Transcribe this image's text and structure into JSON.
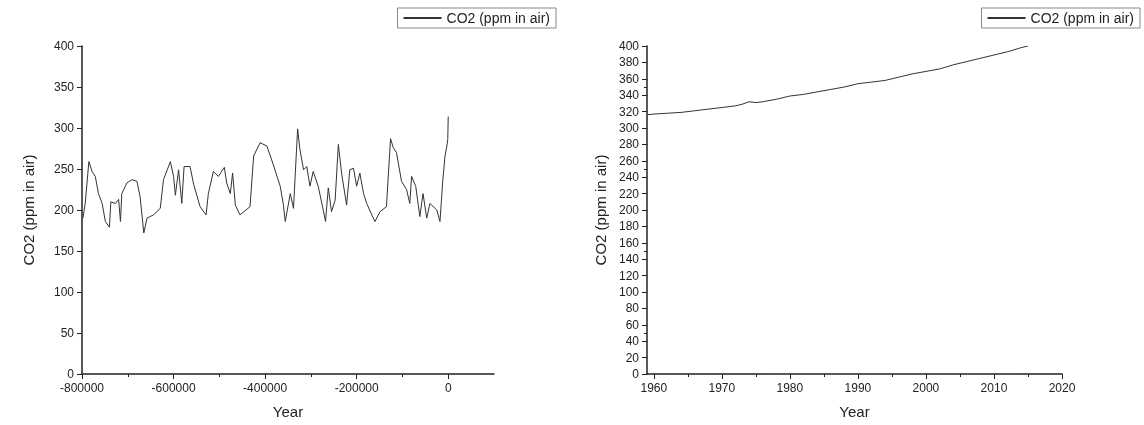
{
  "chart_data": [
    {
      "type": "line",
      "xlabel": "Year",
      "ylabel": "CO2 (ppm in air)",
      "legend": "top right",
      "grid": false,
      "marker": "none",
      "line_style": "solid",
      "xlim": [
        -800000,
        100000
      ],
      "xticks": [
        -800000,
        -600000,
        -400000,
        -200000,
        0
      ],
      "ylim": [
        0,
        400
      ],
      "yticks": [
        0,
        50,
        100,
        150,
        200,
        250,
        300,
        350,
        400
      ],
      "x": [
        -798000,
        -793000,
        -785000,
        -778000,
        -771000,
        -764000,
        -756000,
        -749000,
        -740000,
        -737000,
        -727000,
        -720000,
        -716000,
        -713000,
        -702000,
        -691000,
        -680000,
        -673000,
        -665000,
        -658000,
        -644000,
        -629000,
        -622000,
        -607000,
        -600000,
        -596000,
        -589000,
        -582000,
        -577000,
        -564000,
        -556000,
        -542000,
        -529000,
        -524000,
        -513000,
        -502000,
        -489000,
        -484000,
        -476000,
        -471000,
        -465000,
        -455000,
        -433000,
        -425000,
        -411000,
        -396000,
        -382000,
        -367000,
        -360000,
        -356000,
        -345000,
        -338000,
        -329000,
        -324000,
        -316000,
        -309000,
        -302000,
        -295000,
        -284000,
        -273000,
        -268000,
        -262000,
        -255000,
        -247000,
        -240000,
        -233000,
        -222000,
        -215000,
        -207000,
        -200000,
        -193000,
        -185000,
        -178000,
        -167000,
        -160000,
        -149000,
        -135000,
        -126000,
        -120000,
        -113000,
        -102000,
        -91000,
        -84000,
        -80000,
        -71000,
        -62000,
        -55000,
        -47000,
        -40000,
        -25000,
        -18000,
        -12000,
        -7000,
        -3000,
        -1000,
        0
      ],
      "series": [
        {
          "name": "CO2 (ppm in air)",
          "color": "#333333",
          "values": [
            190,
            208,
            259,
            247,
            241,
            220,
            208,
            186,
            179,
            210,
            208,
            213,
            186,
            220,
            233,
            237,
            235,
            216,
            172,
            190,
            194,
            202,
            237,
            259,
            241,
            218,
            249,
            208,
            253,
            253,
            231,
            204,
            194,
            220,
            247,
            241,
            252,
            233,
            220,
            245,
            206,
            194,
            204,
            266,
            282,
            278,
            255,
            229,
            206,
            186,
            220,
            202,
            299,
            274,
            249,
            253,
            229,
            247,
            229,
            200,
            186,
            227,
            198,
            212,
            280,
            245,
            206,
            249,
            251,
            229,
            245,
            220,
            208,
            194,
            186,
            198,
            204,
            287,
            276,
            270,
            235,
            225,
            208,
            241,
            229,
            192,
            220,
            190,
            208,
            200,
            186,
            235,
            266,
            278,
            286,
            314
          ]
        }
      ]
    },
    {
      "type": "line",
      "xlabel": "Year",
      "ylabel": "CO2 (ppm in air)",
      "legend": "top right",
      "grid": false,
      "marker": "none",
      "line_style": "solid",
      "xlim": [
        1959,
        2020
      ],
      "xticks": [
        1960,
        1970,
        1980,
        1990,
        2000,
        2010,
        2020
      ],
      "ylim": [
        0,
        400
      ],
      "yticks": [
        0,
        20,
        40,
        60,
        80,
        100,
        120,
        140,
        160,
        180,
        200,
        220,
        240,
        260,
        280,
        300,
        320,
        340,
        360,
        380,
        400
      ],
      "x": [
        1959,
        1960,
        1962,
        1964,
        1966,
        1968,
        1970,
        1972,
        1973,
        1974,
        1975,
        1976,
        1978,
        1980,
        1982,
        1984,
        1986,
        1988,
        1990,
        1992,
        1994,
        1996,
        1998,
        2000,
        2002,
        2004,
        2006,
        2008,
        2010,
        2012,
        2014,
        2015
      ],
      "series": [
        {
          "name": "CO2 (ppm in air)",
          "color": "#333333",
          "values": [
            316,
            317,
            318,
            319,
            321,
            323,
            325,
            327,
            329,
            332,
            331,
            332,
            335,
            339,
            341,
            344,
            347,
            350,
            354,
            356,
            358,
            362,
            366,
            369,
            372,
            377,
            381,
            385,
            389,
            393,
            398,
            400
          ]
        }
      ]
    }
  ]
}
